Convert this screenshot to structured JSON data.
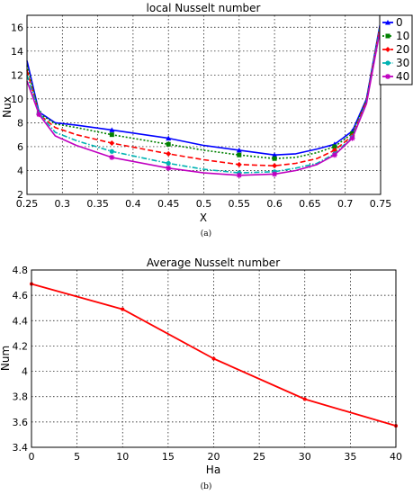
{
  "chart_data": [
    {
      "type": "line",
      "panel_label": "(a)",
      "title": "local Nusselt number",
      "xlabel": "X",
      "ylabel": "Nux",
      "xlim": [
        0.25,
        0.75
      ],
      "ylim": [
        2,
        17
      ],
      "xticks": [
        "0.25",
        "0.3",
        "0.35",
        "0.4",
        "0.45",
        "0.5",
        "0.55",
        "0.6",
        "0.65",
        "0.7",
        "0.75"
      ],
      "yticks": [
        "2",
        "4",
        "6",
        "8",
        "10",
        "12",
        "14",
        "16"
      ],
      "grid": true,
      "legend_position": "top-right",
      "series": [
        {
          "name": "0",
          "color": "#0000ff",
          "dash": "solid",
          "marker": "triangle",
          "x": [
            0.25,
            0.267,
            0.29,
            0.32,
            0.37,
            0.45,
            0.5,
            0.55,
            0.6,
            0.63,
            0.66,
            0.685,
            0.71,
            0.73,
            0.75
          ],
          "y": [
            13.2,
            8.9,
            8.0,
            7.8,
            7.4,
            6.7,
            6.1,
            5.7,
            5.3,
            5.4,
            5.8,
            6.2,
            7.3,
            10.0,
            16.5
          ]
        },
        {
          "name": "10",
          "color": "#008000",
          "dash": "dotted",
          "marker": "square",
          "x": [
            0.25,
            0.267,
            0.29,
            0.32,
            0.37,
            0.45,
            0.5,
            0.55,
            0.6,
            0.63,
            0.66,
            0.685,
            0.71,
            0.73,
            0.75
          ],
          "y": [
            12.8,
            8.8,
            7.9,
            7.6,
            7.0,
            6.2,
            5.7,
            5.3,
            5.0,
            5.1,
            5.5,
            6.0,
            7.1,
            9.9,
            16.4
          ]
        },
        {
          "name": "20",
          "color": "#ff0000",
          "dash": "dashed",
          "marker": "diamond",
          "x": [
            0.25,
            0.267,
            0.29,
            0.32,
            0.37,
            0.45,
            0.5,
            0.55,
            0.6,
            0.63,
            0.66,
            0.685,
            0.71,
            0.73,
            0.75
          ],
          "y": [
            12.4,
            8.7,
            7.6,
            7.0,
            6.3,
            5.4,
            4.9,
            4.5,
            4.4,
            4.6,
            5.0,
            5.7,
            6.9,
            9.8,
            16.3
          ]
        },
        {
          "name": "30",
          "color": "#00b3b3",
          "dash": "dashdot",
          "marker": "circle",
          "x": [
            0.25,
            0.267,
            0.29,
            0.32,
            0.37,
            0.45,
            0.5,
            0.55,
            0.6,
            0.63,
            0.66,
            0.685,
            0.71,
            0.73,
            0.75
          ],
          "y": [
            12.0,
            8.8,
            7.2,
            6.5,
            5.6,
            4.6,
            4.1,
            3.8,
            3.9,
            4.2,
            4.6,
            5.4,
            6.8,
            9.7,
            16.2
          ]
        },
        {
          "name": "40",
          "color": "#c000c0",
          "dash": "solid",
          "marker": "star",
          "x": [
            0.25,
            0.267,
            0.29,
            0.32,
            0.37,
            0.45,
            0.5,
            0.55,
            0.6,
            0.63,
            0.66,
            0.685,
            0.71,
            0.73,
            0.75
          ],
          "y": [
            11.5,
            8.7,
            6.9,
            6.1,
            5.1,
            4.2,
            3.8,
            3.6,
            3.7,
            4.0,
            4.5,
            5.3,
            6.7,
            9.6,
            16.0
          ]
        }
      ]
    },
    {
      "type": "line",
      "panel_label": "(b)",
      "title": "Average Nusselt number",
      "xlabel": "Ha",
      "ylabel": "Num",
      "xlim": [
        0,
        40
      ],
      "ylim": [
        3.4,
        4.8
      ],
      "xticks": [
        "0",
        "5",
        "10",
        "15",
        "20",
        "25",
        "30",
        "35",
        "40"
      ],
      "yticks": [
        "3.4",
        "3.6",
        "3.8",
        "4",
        "4.2",
        "4.4",
        "4.6",
        "4.8"
      ],
      "grid": true,
      "series": [
        {
          "color": "#ff0000",
          "marker": "dot",
          "x": [
            0,
            10,
            20,
            30,
            40
          ],
          "y": [
            4.69,
            4.49,
            4.1,
            3.78,
            3.57
          ]
        }
      ]
    }
  ]
}
